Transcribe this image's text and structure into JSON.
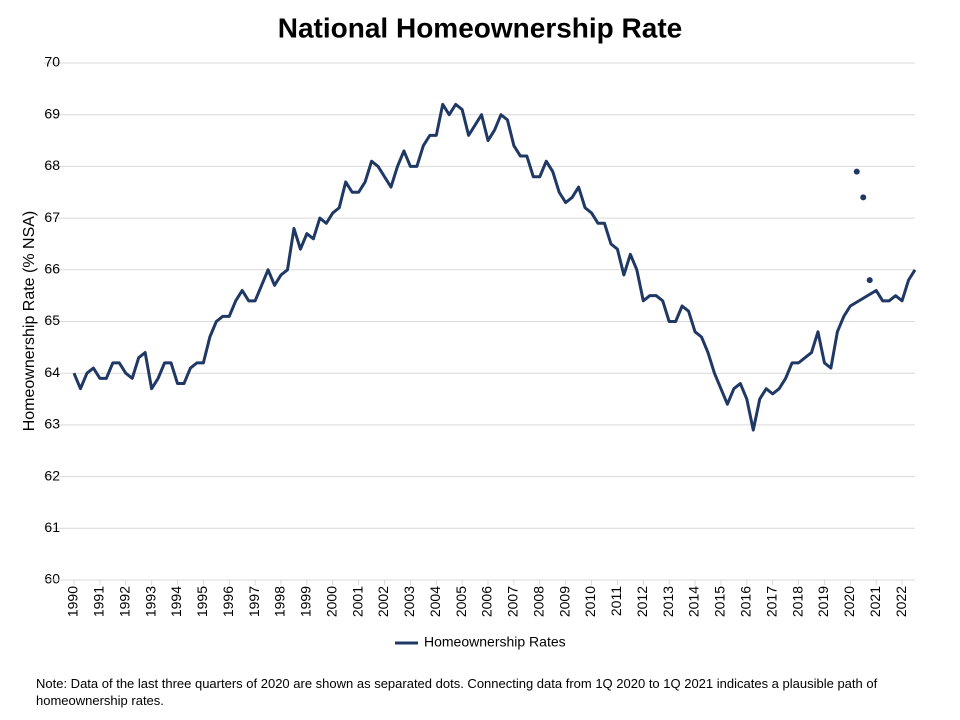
{
  "chart_data": {
    "type": "line",
    "title": "National Homeownership Rate",
    "y_label": "Homeownership Rate (% NSA)",
    "note": "Note: Data of the last three quarters of 2020  are shown as separated dots. Connecting data from 1Q 2020  to 1Q 2021 indicates a plausible path of homeownership rates.",
    "xlim": [
      1990,
      2022.5
    ],
    "xticks": [
      1990,
      1991,
      1992,
      1993,
      1994,
      1995,
      1996,
      1997,
      1998,
      1999,
      2000,
      2001,
      2002,
      2003,
      2004,
      2005,
      2006,
      2007,
      2008,
      2009,
      2010,
      2011,
      2012,
      2013,
      2014,
      2015,
      2016,
      2017,
      2018,
      2019,
      2020,
      2021,
      2022
    ],
    "ylim": [
      60,
      70
    ],
    "yticks": [
      60,
      61,
      62,
      63,
      64,
      65,
      66,
      67,
      68,
      69,
      70
    ],
    "grid": true,
    "legend": "bottom",
    "series": [
      {
        "name": "Homeownership Rates",
        "color": "#1f3864",
        "x": [
          1990,
          1990.25,
          1990.5,
          1990.75,
          1991,
          1991.25,
          1991.5,
          1991.75,
          1992,
          1992.25,
          1992.5,
          1992.75,
          1993,
          1993.25,
          1993.5,
          1993.75,
          1994,
          1994.25,
          1994.5,
          1994.75,
          1995,
          1995.25,
          1995.5,
          1995.75,
          1996,
          1996.25,
          1996.5,
          1996.75,
          1997,
          1997.25,
          1997.5,
          1997.75,
          1998,
          1998.25,
          1998.5,
          1998.75,
          1999,
          1999.25,
          1999.5,
          1999.75,
          2000,
          2000.25,
          2000.5,
          2000.75,
          2001,
          2001.25,
          2001.5,
          2001.75,
          2002,
          2002.25,
          2002.5,
          2002.75,
          2003,
          2003.25,
          2003.5,
          2003.75,
          2004,
          2004.25,
          2004.5,
          2004.75,
          2005,
          2005.25,
          2005.5,
          2005.75,
          2006,
          2006.25,
          2006.5,
          2006.75,
          2007,
          2007.25,
          2007.5,
          2007.75,
          2008,
          2008.25,
          2008.5,
          2008.75,
          2009,
          2009.25,
          2009.5,
          2009.75,
          2010,
          2010.25,
          2010.5,
          2010.75,
          2011,
          2011.25,
          2011.5,
          2011.75,
          2012,
          2012.25,
          2012.5,
          2012.75,
          2013,
          2013.25,
          2013.5,
          2013.75,
          2014,
          2014.25,
          2014.5,
          2014.75,
          2015,
          2015.25,
          2015.5,
          2015.75,
          2016,
          2016.25,
          2016.5,
          2016.75,
          2017,
          2017.25,
          2017.5,
          2017.75,
          2018,
          2018.25,
          2018.5,
          2018.75,
          2019,
          2019.25,
          2019.5,
          2019.75,
          2020,
          2021,
          2021.25,
          2021.5,
          2021.75,
          2022,
          2022.25,
          2022.5
        ],
        "values": [
          64.0,
          63.7,
          64.0,
          64.1,
          63.9,
          63.9,
          64.2,
          64.2,
          64.0,
          63.9,
          64.3,
          64.4,
          63.7,
          63.9,
          64.2,
          64.2,
          63.8,
          63.8,
          64.1,
          64.2,
          64.2,
          64.7,
          65.0,
          65.1,
          65.1,
          65.4,
          65.6,
          65.4,
          65.4,
          65.7,
          66.0,
          65.7,
          65.9,
          66.0,
          66.8,
          66.4,
          66.7,
          66.6,
          67.0,
          66.9,
          67.1,
          67.2,
          67.7,
          67.5,
          67.5,
          67.7,
          68.1,
          68.0,
          67.8,
          67.6,
          68.0,
          68.3,
          68.0,
          68.0,
          68.4,
          68.6,
          68.6,
          69.2,
          69.0,
          69.2,
          69.1,
          68.6,
          68.8,
          69.0,
          68.5,
          68.7,
          69.0,
          68.9,
          68.4,
          68.2,
          68.2,
          67.8,
          67.8,
          68.1,
          67.9,
          67.5,
          67.3,
          67.4,
          67.6,
          67.2,
          67.1,
          66.9,
          66.9,
          66.5,
          66.4,
          65.9,
          66.3,
          66.0,
          65.4,
          65.5,
          65.5,
          65.4,
          65.0,
          65.0,
          65.3,
          65.2,
          64.8,
          64.7,
          64.4,
          64.0,
          63.7,
          63.4,
          63.7,
          63.8,
          63.5,
          62.9,
          63.5,
          63.7,
          63.6,
          63.7,
          63.9,
          64.2,
          64.2,
          64.3,
          64.4,
          64.8,
          64.2,
          64.1,
          64.8,
          65.1,
          65.3,
          65.6,
          65.4,
          65.4,
          65.5,
          65.4,
          65.8,
          66.0
        ]
      }
    ],
    "separated_points": {
      "color": "#1f3864",
      "x": [
        2020.25,
        2020.5,
        2020.75
      ],
      "values": [
        67.9,
        67.4,
        65.8
      ]
    }
  }
}
